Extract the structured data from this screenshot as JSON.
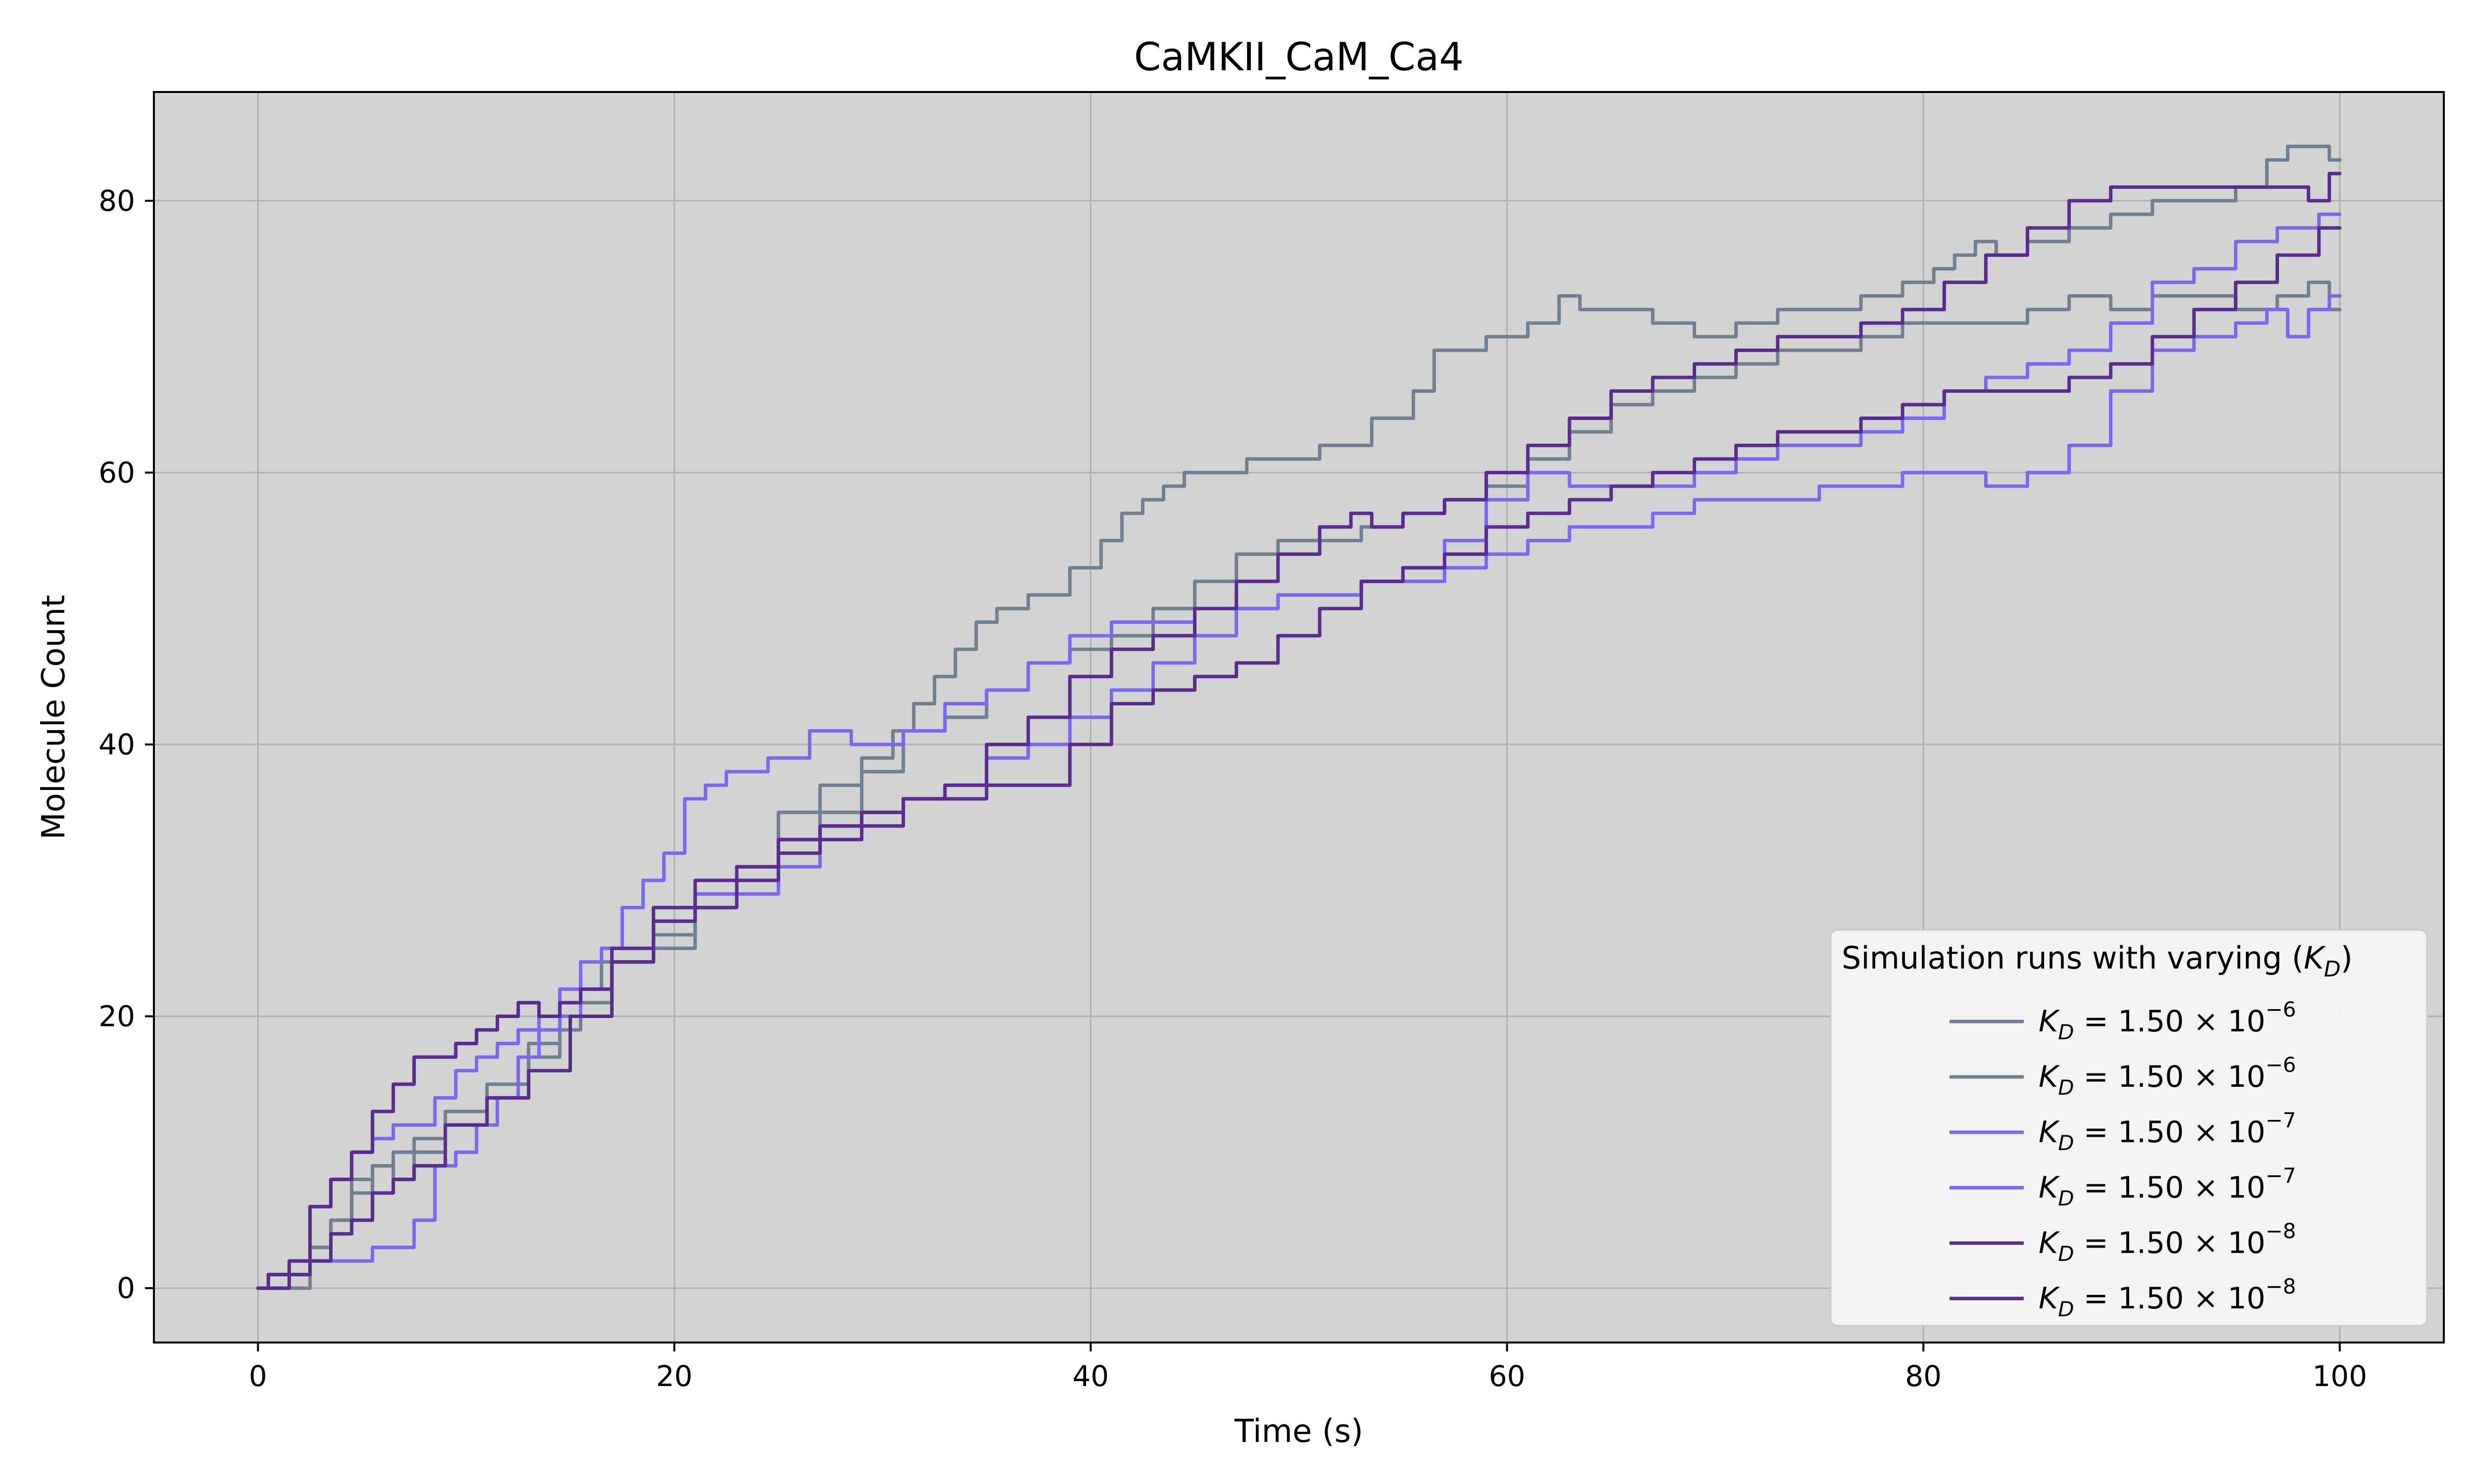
{
  "chart_data": {
    "type": "line",
    "title": "CaMKII_CaM_Ca4",
    "xlabel": "Time (s)",
    "ylabel": "Molecule Count",
    "xlim": [
      -5,
      105
    ],
    "ylim": [
      -4,
      88
    ],
    "xticks": [
      0,
      20,
      40,
      60,
      80,
      100
    ],
    "yticks": [
      0,
      20,
      40,
      60,
      80
    ],
    "grid": true,
    "background_color": "#d3d3d3",
    "legend": {
      "title": "Simulation runs with varying (K_D)",
      "placement": "lower-right",
      "labels": [
        {
          "var": "K",
          "sub": "D",
          "mantissa": "1.50",
          "exp": "−6"
        },
        {
          "var": "K",
          "sub": "D",
          "mantissa": "1.50",
          "exp": "−6"
        },
        {
          "var": "K",
          "sub": "D",
          "mantissa": "1.50",
          "exp": "−7"
        },
        {
          "var": "K",
          "sub": "D",
          "mantissa": "1.50",
          "exp": "−7"
        },
        {
          "var": "K",
          "sub": "D",
          "mantissa": "1.50",
          "exp": "−8"
        },
        {
          "var": "K",
          "sub": "D",
          "mantissa": "1.50",
          "exp": "−8"
        }
      ]
    },
    "series": [
      {
        "color": "#708090",
        "x": [
          0,
          1,
          2,
          3,
          4,
          5,
          6,
          7,
          8,
          10,
          12,
          14,
          15,
          16,
          17,
          18,
          20,
          22,
          24,
          26,
          28,
          30,
          31,
          32,
          33,
          34,
          35,
          36,
          38,
          40,
          41,
          42,
          43,
          44,
          45,
          46,
          47,
          48,
          50,
          52,
          55,
          56,
          57,
          58,
          60,
          62,
          63,
          64,
          65,
          66,
          68,
          70,
          72,
          74,
          76,
          78,
          80,
          81,
          82,
          83,
          84,
          86,
          88,
          90,
          92,
          94,
          96,
          97,
          98,
          99,
          100
        ],
        "y": [
          0,
          1,
          1,
          3,
          5,
          7,
          9,
          10,
          11,
          13,
          15,
          18,
          20,
          22,
          24,
          24,
          26,
          29,
          31,
          35,
          37,
          39,
          41,
          43,
          45,
          47,
          49,
          50,
          51,
          53,
          55,
          57,
          58,
          59,
          60,
          60,
          60,
          61,
          61,
          62,
          64,
          66,
          69,
          69,
          70,
          71,
          73,
          72,
          72,
          72,
          71,
          70,
          71,
          72,
          72,
          73,
          74,
          75,
          76,
          77,
          76,
          77,
          78,
          79,
          80,
          80,
          81,
          83,
          84,
          84,
          83
        ]
      },
      {
        "color": "#708090",
        "x": [
          0,
          1,
          2,
          3,
          4,
          5,
          6,
          7,
          8,
          10,
          12,
          14,
          15,
          16,
          18,
          20,
          22,
          24,
          26,
          28,
          30,
          32,
          34,
          36,
          38,
          40,
          42,
          44,
          46,
          48,
          50,
          52,
          54,
          56,
          58,
          60,
          62,
          64,
          66,
          68,
          70,
          72,
          74,
          76,
          78,
          80,
          82,
          84,
          86,
          88,
          90,
          92,
          94,
          96,
          98,
          99,
          100
        ],
        "y": [
          0,
          0,
          0,
          3,
          5,
          8,
          9,
          8,
          10,
          12,
          14,
          17,
          19,
          21,
          24,
          25,
          28,
          31,
          33,
          35,
          38,
          41,
          42,
          44,
          46,
          47,
          48,
          50,
          52,
          54,
          55,
          55,
          56,
          57,
          58,
          59,
          61,
          63,
          65,
          66,
          67,
          68,
          69,
          69,
          70,
          71,
          71,
          71,
          72,
          73,
          72,
          73,
          73,
          72,
          73,
          74,
          72
        ]
      },
      {
        "color": "#7b68ee",
        "x": [
          0,
          1,
          2,
          3,
          4,
          5,
          6,
          7,
          8,
          9,
          10,
          11,
          12,
          13,
          14,
          15,
          16,
          17,
          18,
          19,
          20,
          21,
          22,
          23,
          24,
          25,
          26,
          27,
          28,
          29,
          30,
          32,
          34,
          36,
          38,
          40,
          42,
          44,
          46,
          48,
          50,
          52,
          54,
          56,
          58,
          60,
          62,
          64,
          66,
          68,
          70,
          72,
          74,
          76,
          78,
          80,
          82,
          84,
          86,
          88,
          90,
          92,
          94,
          96,
          98,
          100
        ],
        "y": [
          0,
          1,
          2,
          6,
          8,
          10,
          11,
          12,
          12,
          14,
          16,
          17,
          18,
          19,
          20,
          22,
          24,
          25,
          28,
          30,
          32,
          36,
          37,
          38,
          38,
          39,
          39,
          41,
          41,
          40,
          40,
          41,
          43,
          44,
          46,
          48,
          49,
          49,
          50,
          50,
          51,
          51,
          52,
          53,
          55,
          58,
          60,
          59,
          59,
          59,
          60,
          61,
          62,
          62,
          63,
          64,
          66,
          67,
          68,
          69,
          71,
          74,
          75,
          77,
          78,
          79
        ]
      },
      {
        "color": "#7b68ee",
        "x": [
          0,
          1,
          2,
          3,
          4,
          5,
          6,
          7,
          8,
          9,
          10,
          11,
          12,
          13,
          14,
          15,
          16,
          18,
          20,
          22,
          24,
          26,
          28,
          30,
          32,
          34,
          36,
          38,
          40,
          42,
          44,
          46,
          48,
          50,
          52,
          54,
          56,
          58,
          60,
          62,
          64,
          66,
          68,
          70,
          72,
          74,
          76,
          78,
          80,
          82,
          84,
          86,
          88,
          90,
          92,
          94,
          96,
          97,
          98,
          99,
          100
        ],
        "y": [
          0,
          0,
          1,
          2,
          2,
          2,
          3,
          3,
          5,
          9,
          10,
          12,
          14,
          17,
          19,
          20,
          22,
          24,
          27,
          29,
          29,
          31,
          34,
          35,
          36,
          37,
          39,
          40,
          42,
          44,
          46,
          48,
          50,
          51,
          51,
          52,
          52,
          53,
          54,
          55,
          56,
          56,
          57,
          58,
          58,
          58,
          59,
          59,
          60,
          60,
          59,
          60,
          62,
          66,
          69,
          70,
          71,
          72,
          70,
          72,
          73
        ]
      },
      {
        "color": "#5b2c8f",
        "x": [
          0,
          1,
          2,
          3,
          4,
          5,
          6,
          7,
          8,
          9,
          10,
          11,
          12,
          13,
          14,
          15,
          16,
          18,
          20,
          22,
          24,
          26,
          28,
          30,
          32,
          34,
          36,
          38,
          40,
          42,
          44,
          46,
          48,
          50,
          52,
          53,
          54,
          56,
          58,
          60,
          62,
          64,
          66,
          68,
          70,
          72,
          74,
          76,
          78,
          80,
          82,
          84,
          86,
          88,
          90,
          92,
          94,
          96,
          98,
          99,
          100
        ],
        "y": [
          0,
          1,
          2,
          6,
          8,
          10,
          13,
          15,
          17,
          17,
          18,
          19,
          20,
          21,
          20,
          21,
          22,
          25,
          28,
          30,
          31,
          33,
          34,
          35,
          36,
          37,
          40,
          42,
          45,
          47,
          48,
          50,
          52,
          54,
          56,
          57,
          56,
          57,
          58,
          60,
          62,
          64,
          66,
          67,
          68,
          69,
          70,
          70,
          71,
          72,
          74,
          76,
          78,
          80,
          81,
          81,
          81,
          81,
          81,
          80,
          82
        ]
      },
      {
        "color": "#5b2c8f",
        "x": [
          0,
          1,
          2,
          3,
          4,
          5,
          6,
          7,
          8,
          10,
          12,
          14,
          16,
          18,
          20,
          22,
          24,
          26,
          28,
          30,
          32,
          34,
          36,
          38,
          40,
          42,
          44,
          46,
          48,
          50,
          52,
          54,
          56,
          58,
          60,
          62,
          64,
          66,
          68,
          70,
          72,
          74,
          76,
          78,
          80,
          82,
          84,
          86,
          88,
          90,
          92,
          94,
          96,
          98,
          100
        ],
        "y": [
          0,
          0,
          1,
          2,
          4,
          5,
          7,
          8,
          9,
          12,
          14,
          16,
          20,
          24,
          27,
          28,
          30,
          32,
          33,
          34,
          36,
          36,
          37,
          37,
          40,
          43,
          44,
          45,
          46,
          48,
          50,
          52,
          53,
          54,
          56,
          57,
          58,
          59,
          60,
          61,
          62,
          63,
          63,
          64,
          65,
          66,
          66,
          66,
          67,
          68,
          70,
          72,
          74,
          76,
          78
        ]
      }
    ]
  }
}
